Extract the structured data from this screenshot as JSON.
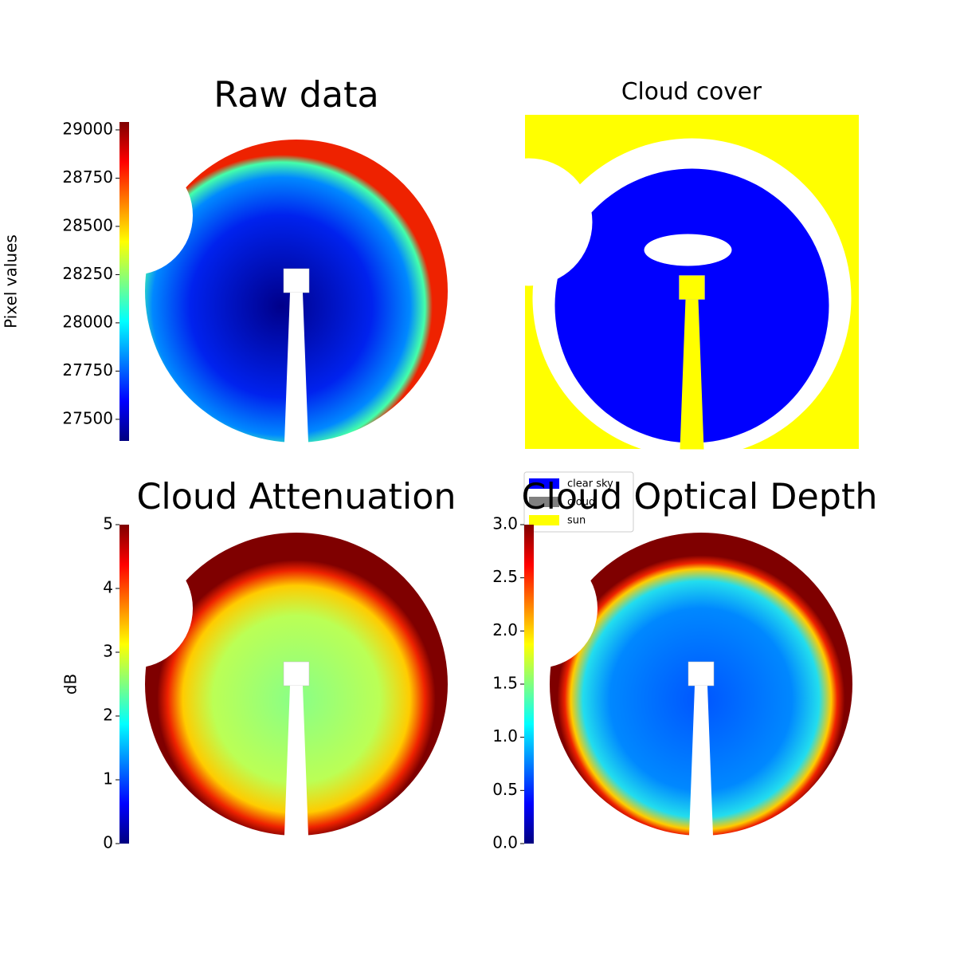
{
  "chart_data": [
    {
      "type": "image",
      "title": "Raw data",
      "colormap": "jet",
      "colorbar_label": "Pixel values",
      "ylim": [
        27388,
        29041
      ],
      "yticks": [
        27500,
        27750,
        28000,
        28250,
        28500,
        28750,
        29000
      ]
    },
    {
      "type": "mask",
      "title": "Cloud cover",
      "series": [
        {
          "name": "clear sky",
          "color": "#0000ff"
        },
        {
          "name": "cloud",
          "color": "#808080"
        },
        {
          "name": "sun",
          "color": "#ffff00"
        }
      ]
    },
    {
      "type": "image",
      "title": "Cloud Attenuation",
      "colormap": "jet",
      "colorbar_label": "dB",
      "ylim": [
        0,
        5
      ],
      "yticks": [
        0,
        1,
        2,
        3,
        4,
        5
      ]
    },
    {
      "type": "image",
      "title": "Cloud Optical Depth",
      "colormap": "jet",
      "ylim": [
        0,
        3
      ],
      "yticks": [
        {
          "value": 0,
          "label": "0.0"
        },
        0.5,
        {
          "value": 1,
          "label": "1.0"
        },
        1.5,
        {
          "value": 2,
          "label": "2.0"
        },
        2.5,
        {
          "value": 3,
          "label": "3.0"
        }
      ]
    }
  ]
}
